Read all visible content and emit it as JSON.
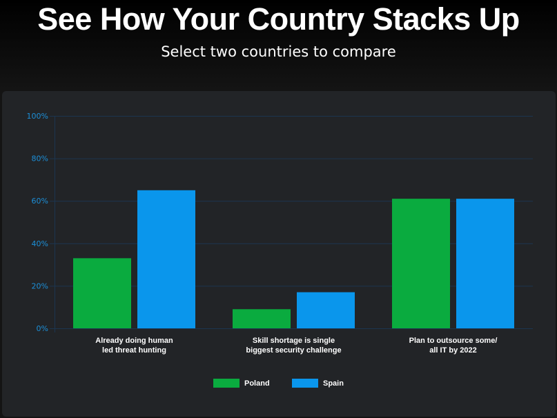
{
  "header": {
    "title": "See How Your Country Stacks Up",
    "subtitle": "Select two countries to compare"
  },
  "chart_data": {
    "type": "bar",
    "categories": [
      [
        "Already doing human",
        "led threat hunting"
      ],
      [
        "Skill shortage is single",
        "biggest security challenge"
      ],
      [
        "Plan to outsource some/",
        "all IT by 2022"
      ]
    ],
    "series": [
      {
        "name": "Poland",
        "color": "#0aab3f",
        "values": [
          33,
          9,
          61
        ]
      },
      {
        "name": "Spain",
        "color": "#0a96ec",
        "values": [
          65,
          17,
          61
        ]
      }
    ],
    "yticks": [
      "0%",
      "20%",
      "40%",
      "60%",
      "80%",
      "100%"
    ],
    "ylim": [
      0,
      100
    ],
    "grid": true,
    "legend": "bottom-center"
  }
}
